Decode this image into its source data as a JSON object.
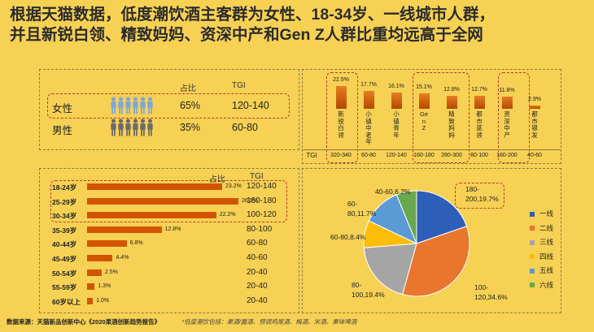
{
  "title": {
    "line1": "根据天猫数据，低度潮饮酒主客群为女性、18-34岁、一线城市人群，",
    "line2": "并且新锐白领、精致妈妈、资深中产和Gen Z人群比重均远高于全网"
  },
  "gender": {
    "header_pct": "占比",
    "header_tgi": "TGI",
    "rows": [
      {
        "label": "女性",
        "pct": "65%",
        "tgi": "120-140",
        "color": "#7fa7d8"
      },
      {
        "label": "男性",
        "pct": "35%",
        "tgi": "60-80",
        "color": "#6b6b6b"
      }
    ]
  },
  "chart_data": [
    {
      "type": "bar",
      "orientation": "horizontal",
      "header_pct": "占比",
      "header_tgi": "TGI",
      "categories": [
        "18-24岁",
        "25-29岁",
        "30-34岁",
        "35-39岁",
        "40-44岁",
        "45-49岁",
        "50-54岁",
        "55-59岁",
        "60岁以上"
      ],
      "values": [
        23.2,
        26.0,
        22.2,
        12.8,
        6.8,
        4.4,
        2.5,
        1.3,
        1.0
      ],
      "labels": [
        "23.2%",
        "26.0%",
        "22.2%",
        "12.8%",
        "6.8%",
        "4.4%",
        "2.5%",
        "1.3%",
        "1.0%"
      ],
      "tgi": [
        "120-140",
        "160-180",
        "100-120",
        "80-100",
        "60-80",
        "40-60",
        "20-40",
        "20-40",
        "20-40"
      ]
    },
    {
      "type": "bar",
      "categories": [
        "新锐白领",
        "小镇中老年",
        "小镇青年",
        "Gen Z",
        "精致妈妈",
        "都市蓝领",
        "资深中产",
        "都市银发"
      ],
      "values": [
        22.5,
        17.7,
        16.1,
        15.1,
        12.8,
        12.7,
        11.8,
        2.9
      ],
      "labels": [
        "22.5%",
        "17.7%",
        "16.1%",
        "15.1%",
        "12.8%",
        "12.7%",
        "11.8%",
        "2.9%"
      ],
      "tgi_label": "TGI",
      "tgi": [
        "320-340",
        "60-80",
        "120-140",
        "160-180",
        "280-300",
        "80-100",
        "180-200",
        "40-60"
      ]
    },
    {
      "type": "pie",
      "categories": [
        "一线",
        "二线",
        "三线",
        "四线",
        "五线",
        "六线"
      ],
      "values": [
        19.7,
        34.6,
        19.4,
        8.4,
        11.7,
        6.2
      ],
      "labels": [
        "180-\n200,19.7%",
        "100-\n120,34.6%",
        "80-\n100,19.4%",
        "60-80,8.4%",
        "60-\n80,11.7%",
        "40-60,6.2%"
      ],
      "colors": [
        "#2e5fb8",
        "#e8762d",
        "#a5a5a5",
        "#fbbd07",
        "#5b9bd5",
        "#6aa84f"
      ]
    }
  ],
  "footer": {
    "source": "数据来源：天猫新品创新中心《2020果酒创新趋势报告》",
    "note": "*低度潮饮包括：果酒/露酒、预调鸡尾酒、梅酒、米酒、果味啤酒"
  }
}
